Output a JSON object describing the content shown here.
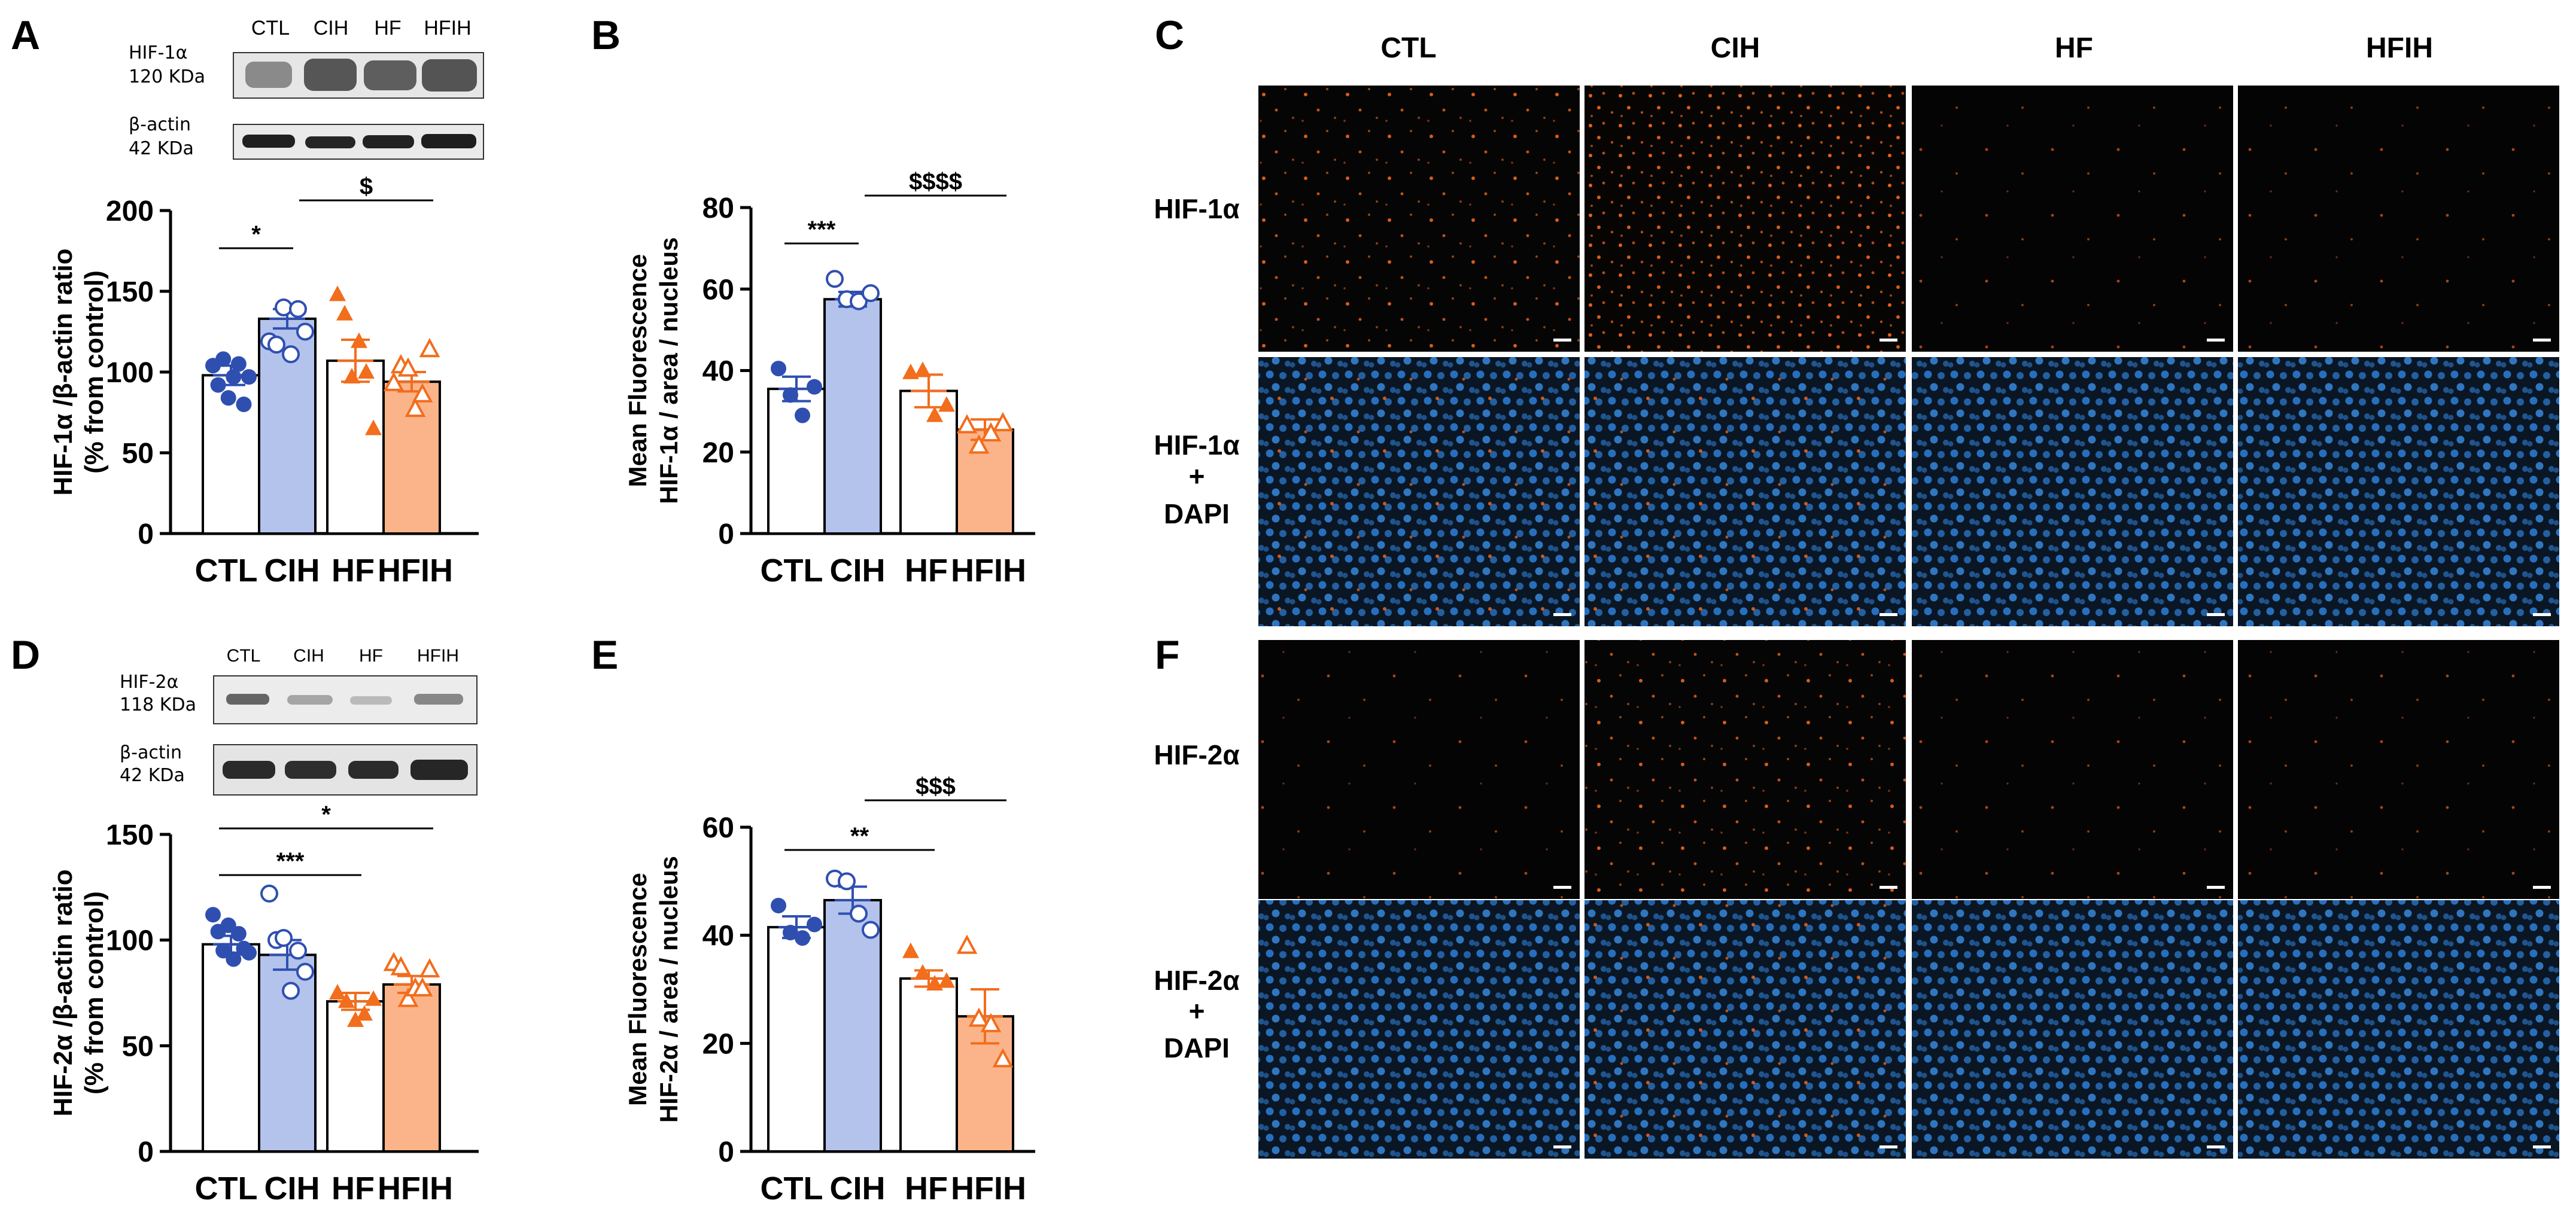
{
  "panels": {
    "A": {
      "letter": "A"
    },
    "B": {
      "letter": "B"
    },
    "C": {
      "letter": "C"
    },
    "D": {
      "letter": "D"
    },
    "E": {
      "letter": "E"
    },
    "F": {
      "letter": "F"
    }
  },
  "blots": {
    "A": {
      "lanes": [
        "CTL",
        "CIH",
        "HF",
        "HFIH"
      ],
      "protein_name": "HIF-1α",
      "protein_kda": "120 KDa",
      "loading_name": "β-actin",
      "loading_kda": "42 KDa"
    },
    "D": {
      "lanes": [
        "CTL",
        "CIH",
        "HF",
        "HFIH"
      ],
      "protein_name": "HIF-2α",
      "protein_kda": "118 KDa",
      "loading_name": "β-actin",
      "loading_kda": "42 KDa"
    }
  },
  "micrographs": {
    "columns": [
      "CTL",
      "CIH",
      "HF",
      "HFIH"
    ],
    "C_rows": [
      "HIF-1α",
      "HIF-1α\n+\nDAPI"
    ],
    "F_rows": [
      "HIF-2α",
      "HIF-2α\n+\nDAPI"
    ],
    "row_labels": {
      "C1": "HIF-1α",
      "C2a": "HIF-1α",
      "C2b": "+",
      "C2c": "DAPI",
      "F1": "HIF-2α",
      "F2a": "HIF-2α",
      "F2b": "+",
      "F2c": "DAPI"
    }
  },
  "colors": {
    "ctl_marker": "#2f4fb0",
    "cih_fill": "#b4c3ec",
    "cih_marker": "#2f4fb0",
    "hf_marker": "#f26d1c",
    "hfih_fill": "#fbb48a",
    "hfih_marker": "#f26d1c",
    "fluor_orange": "#ff6a1a",
    "dapi_blue": "#2d7fd8",
    "axis": "#000000"
  },
  "chart_data": [
    {
      "id": "A",
      "type": "bar",
      "categories": [
        "CTL",
        "CIH",
        "HF",
        "HFIH"
      ],
      "values": [
        98,
        133,
        107,
        94
      ],
      "errors": [
        6,
        6,
        13,
        6
      ],
      "points": [
        [
          104,
          92,
          108,
          84,
          97,
          105,
          80,
          97
        ],
        [
          119,
          117,
          140,
          111,
          139,
          125
        ],
        [
          148,
          136,
          97,
          119,
          100,
          65
        ],
        [
          93,
          104,
          102,
          77,
          86,
          114
        ]
      ],
      "ylabel": [
        "HIF-1α /β-actin ratio",
        "(% from control)"
      ],
      "ylim": [
        0,
        200
      ],
      "yticks": [
        0,
        50,
        100,
        150,
        200
      ],
      "annotations": [
        {
          "text": "*",
          "from": "CTL",
          "to": "CIH"
        },
        {
          "text": "$",
          "from": "CIH",
          "to": "HFIH"
        }
      ]
    },
    {
      "id": "B",
      "type": "bar",
      "categories": [
        "CTL",
        "CIH",
        "HF",
        "HFIH"
      ],
      "values": [
        35.5,
        57.5,
        35,
        25.5
      ],
      "errors": [
        3,
        1.8,
        4,
        2.5
      ],
      "points": [
        [
          40.5,
          34,
          29,
          36
        ],
        [
          62.5,
          57.5,
          57,
          59
        ],
        [
          39.5,
          40,
          29,
          31.5
        ],
        [
          26.5,
          21.5,
          24.5,
          27
        ]
      ],
      "ylabel": [
        "Mean Fluorescence",
        "HIF-1α / area / nucleus"
      ],
      "ylim": [
        0,
        80
      ],
      "yticks": [
        0,
        20,
        40,
        60,
        80
      ],
      "annotations": [
        {
          "text": "***",
          "from": "CTL",
          "to": "CIH"
        },
        {
          "text": "$$$$",
          "from": "CIH",
          "to": "HFIH"
        }
      ]
    },
    {
      "id": "D",
      "type": "bar",
      "categories": [
        "CTL",
        "CIH",
        "HF",
        "HFIH"
      ],
      "values": [
        98,
        93,
        71,
        79
      ],
      "errors": [
        4,
        7,
        4,
        4
      ],
      "points": [
        [
          112,
          104,
          95,
          107,
          91,
          103,
          96,
          94
        ],
        [
          122,
          100,
          101,
          76,
          95,
          85
        ],
        [
          75,
          71,
          62,
          65,
          72
        ],
        [
          89,
          87,
          72,
          77,
          77,
          86
        ]
      ],
      "ylabel": [
        "HIF-2α /β-actin ratio",
        "(% from control)"
      ],
      "ylim": [
        0,
        150
      ],
      "yticks": [
        0,
        50,
        100,
        150
      ],
      "annotations": [
        {
          "text": "*",
          "from": "CTL",
          "to": "HFIH"
        },
        {
          "text": "***",
          "from": "CTL",
          "to": "HF"
        }
      ]
    },
    {
      "id": "E",
      "type": "bar",
      "categories": [
        "CTL",
        "CIH",
        "HF",
        "HFIH"
      ],
      "values": [
        41.5,
        46.5,
        32,
        25
      ],
      "errors": [
        2,
        2.5,
        1.5,
        5
      ],
      "points": [
        [
          45.5,
          40.5,
          39.5,
          42
        ],
        [
          50.5,
          50,
          44,
          41
        ],
        [
          37,
          33,
          31,
          31.5
        ],
        [
          38,
          24.5,
          23.5,
          17
        ]
      ],
      "ylabel": [
        "Mean Fluorescence",
        "HIF-2α / area / nucleus"
      ],
      "ylim": [
        0,
        60
      ],
      "yticks": [
        0,
        20,
        40,
        60
      ],
      "annotations": [
        {
          "text": "**",
          "from": "CTL",
          "to": "HF"
        },
        {
          "text": "$$$",
          "from": "CIH",
          "to": "HFIH"
        }
      ]
    }
  ]
}
